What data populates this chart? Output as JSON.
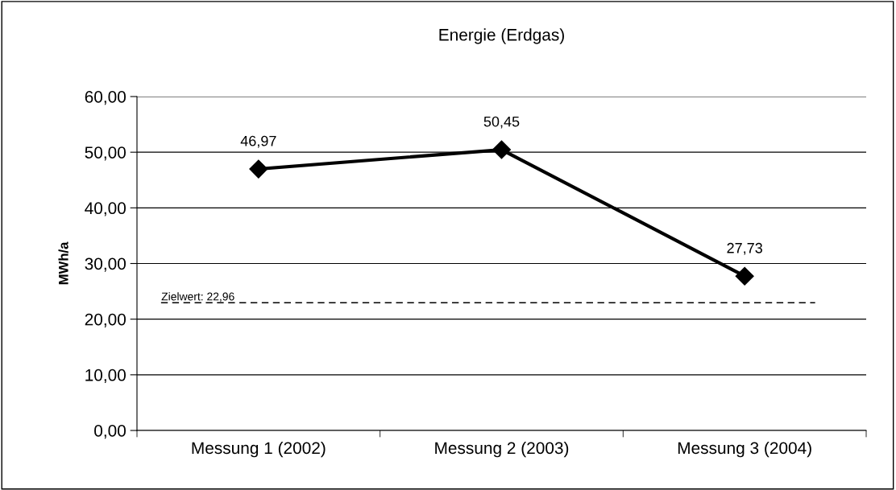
{
  "chart_data": {
    "type": "line",
    "title": "Energie (Erdgas)",
    "ylabel": "MWh/a",
    "categories": [
      "Messung 1 (2002)",
      "Messung 2 (2003)",
      "Messung 3 (2004)"
    ],
    "series": [
      {
        "color": "#000000",
        "values": [
          46.97,
          50.45,
          27.73
        ],
        "value_labels": [
          "46,97",
          "50,45",
          "27,73"
        ]
      }
    ],
    "ylim": [
      0,
      60
    ],
    "yticks": [
      {
        "value": 0,
        "label": "0,00"
      },
      {
        "value": 10,
        "label": "10,00"
      },
      {
        "value": 20,
        "label": "20,00"
      },
      {
        "value": 30,
        "label": "30,00"
      },
      {
        "value": 40,
        "label": "40,00"
      },
      {
        "value": 50,
        "label": "50,00"
      },
      {
        "value": 60,
        "label": "60,00"
      }
    ],
    "grid": "y",
    "marker": "diamond",
    "line_style": "solid",
    "ref_lines": [
      {
        "axis": "y",
        "value": 22.96,
        "label": "Zielwert: 22,96",
        "color": "#000000",
        "line_style": "dashed"
      }
    ]
  }
}
